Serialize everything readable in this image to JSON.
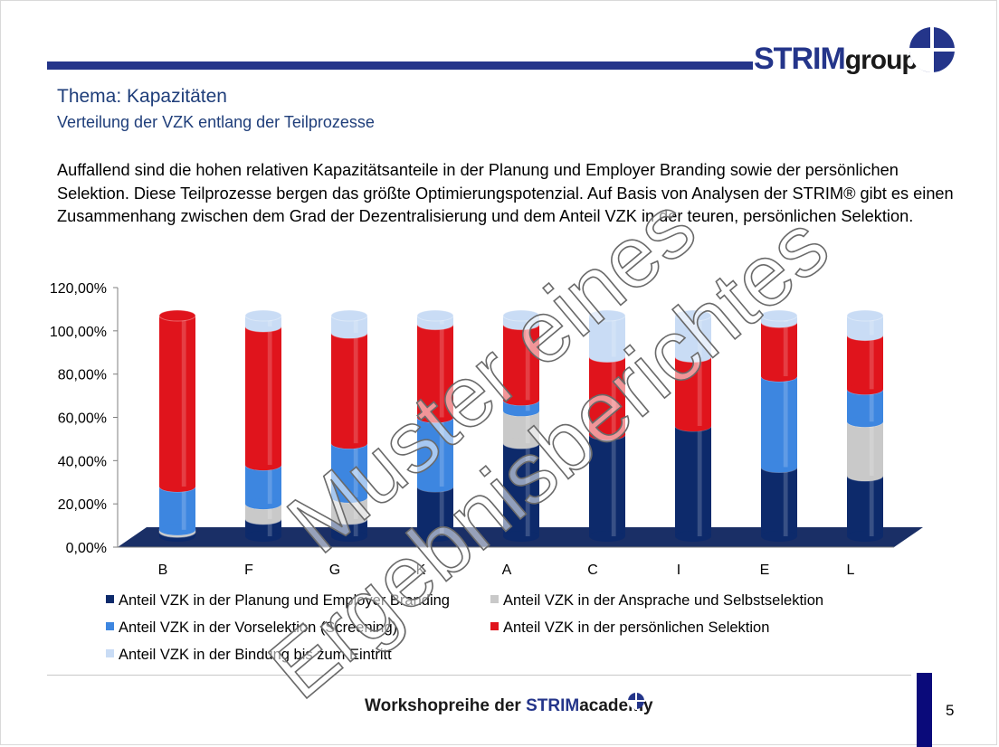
{
  "header": {
    "logo_text": "STRIM",
    "logo_suffix": "group",
    "title": "Thema: Kapazitäten",
    "subtitle": "Verteilung der VZK entlang der Teilprozesse"
  },
  "body_text": "Auffallend sind die hohen relativen Kapazitätsanteile in der Planung und Employer Branding sowie der persönlichen Selektion. Diese Teilprozesse bergen das größte Optimierungspotenzial. Auf Basis von Analysen der STRIM® gibt es einen Zusammenhang zwischen dem Grad der Dezentralisierung und dem Anteil VZK in der teuren, persönlichen Selektion.",
  "watermark": {
    "line1": "Muster eines",
    "line2": "Ergebnisberichtes"
  },
  "footer": {
    "prefix": "Workshopreihe der ",
    "brand": "STRIM",
    "brand_suffix": "academy",
    "page_number": "5"
  },
  "colors": {
    "navy": "#0d2a6b",
    "grey": "#c9c9c9",
    "blue": "#3d86e0",
    "red": "#e0141c",
    "lightblue": "#c9dcf5",
    "brand": "#24358a"
  },
  "chart_data": {
    "type": "bar",
    "stacked": true,
    "three_d": true,
    "categories": [
      "B",
      "F",
      "G",
      "K",
      "A",
      "C",
      "I",
      "E",
      "L"
    ],
    "ylim": [
      0,
      120
    ],
    "y_ticks": [
      "0,00%",
      "20,00%",
      "40,00%",
      "60,00%",
      "80,00%",
      "100,00%",
      "120,00%"
    ],
    "legend_position": "bottom",
    "series": [
      {
        "name": "Anteil VZK in der Planung und Employer Branding",
        "color": "#0d2a6b",
        "values": [
          2,
          8,
          8,
          23,
          43,
          47,
          51,
          32,
          28
        ]
      },
      {
        "name": "Anteil VZK in der Ansprache und Selbstselektion",
        "color": "#c9c9c9",
        "values": [
          1,
          7,
          10,
          0,
          15,
          0,
          0,
          0,
          25
        ]
      },
      {
        "name": "Anteil VZK in der Vorselektion (Screening)",
        "color": "#3d86e0",
        "values": [
          20,
          18,
          25,
          32,
          5,
          0,
          0,
          42,
          15
        ]
      },
      {
        "name": "Anteil VZK in der persönlichen Selektion",
        "color": "#e0141c",
        "values": [
          79,
          64,
          51,
          43,
          35,
          36,
          32,
          25,
          25
        ]
      },
      {
        "name": "Anteil VZK in der Bindung bis zum Eintritt",
        "color": "#c9dcf5",
        "values": [
          0,
          5,
          8,
          4,
          4,
          19,
          19,
          3,
          9
        ]
      }
    ],
    "legend_order": [
      0,
      1,
      2,
      3,
      4
    ]
  }
}
